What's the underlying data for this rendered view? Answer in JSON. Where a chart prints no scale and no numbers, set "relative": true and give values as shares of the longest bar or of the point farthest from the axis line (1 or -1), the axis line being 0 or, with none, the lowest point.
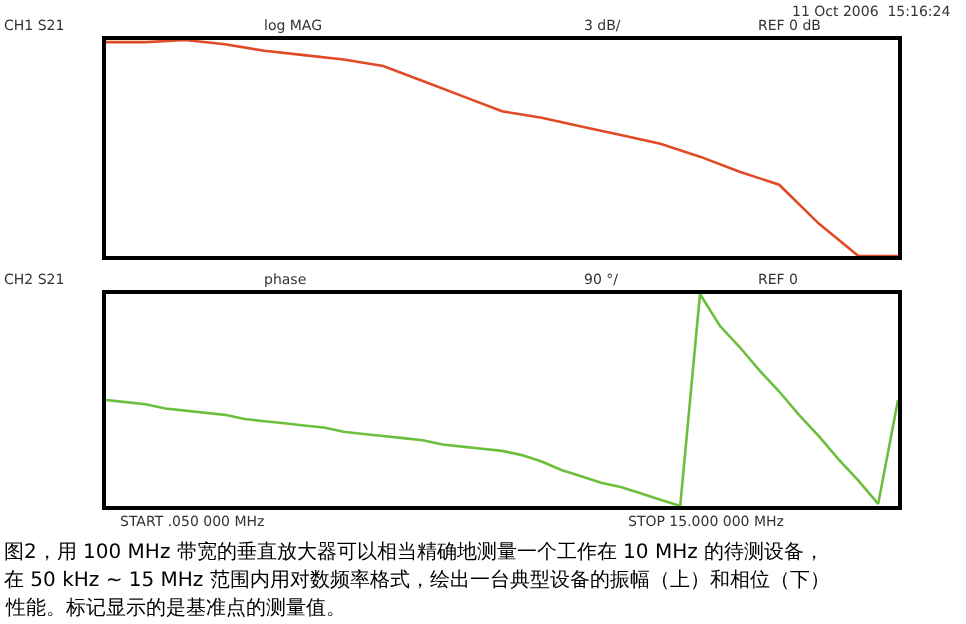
{
  "chart_data": [
    {
      "type": "line",
      "relative": true,
      "marker": "none",
      "line_style": "solid",
      "categories": [
        null,
        null,
        null,
        null,
        null,
        null,
        null,
        null,
        null,
        null,
        null,
        null,
        null,
        null,
        null,
        null,
        null,
        null,
        null,
        null,
        null
      ],
      "annotations": [
        "CH1 S21",
        "log MAG",
        "3 dB/",
        "REF 0 dB",
        "11 Oct 2006  15:16:24"
      ],
      "series": [
        {
          "color": "#e04a24",
          "values": [
            0.99,
            0.99,
            1.0,
            0.98,
            0.95,
            0.93,
            0.91,
            0.88,
            0.81,
            0.74,
            0.67,
            0.64,
            0.6,
            0.56,
            0.52,
            0.46,
            0.39,
            0.33,
            0.15,
            0,
            0
          ]
        }
      ]
    },
    {
      "type": "line",
      "relative": true,
      "marker": "none",
      "line_style": "solid",
      "categories": [
        null,
        null,
        null,
        null,
        null,
        null,
        null,
        null,
        null,
        null,
        null,
        null,
        null,
        null,
        null,
        null,
        null,
        null,
        null,
        null,
        null,
        null,
        null,
        null,
        null,
        null,
        null,
        null,
        null,
        null,
        null,
        null,
        null,
        null,
        null,
        null,
        null,
        null,
        null,
        null,
        null
      ],
      "annotations": [
        "CH2 S21",
        "phase",
        "90 °/",
        "REF 0",
        "START .050 000 MHz",
        "STOP 15.000 000 MHz",
        "图2，用 100 MHz 带宽的垂直放大器可以相当精确地测量一个工作在 10 MHz 的待测设备，",
        "在 50 kHz ~ 15 MHz 范围内用对数频率格式，绘出一台典型设备的振幅（上）和相位（下）",
        "性能。标记显示的是基准点的测量值。"
      ],
      "series": [
        {
          "color": "#6cbf3c",
          "values": [
            0.5,
            0.49,
            0.48,
            0.46,
            0.45,
            0.44,
            0.43,
            0.41,
            0.4,
            0.39,
            0.38,
            0.37,
            0.35,
            0.34,
            0.33,
            0.32,
            0.31,
            0.29,
            0.28,
            0.27,
            0.26,
            0.24,
            0.21,
            0.17,
            0.14,
            0.11,
            0.09,
            0.06,
            0.03,
            0.0,
            1.0,
            0.85,
            0.75,
            0.64,
            0.54,
            0.43,
            0.33,
            0.22,
            0.12,
            0.01,
            0.5
          ]
        }
      ]
    }
  ]
}
